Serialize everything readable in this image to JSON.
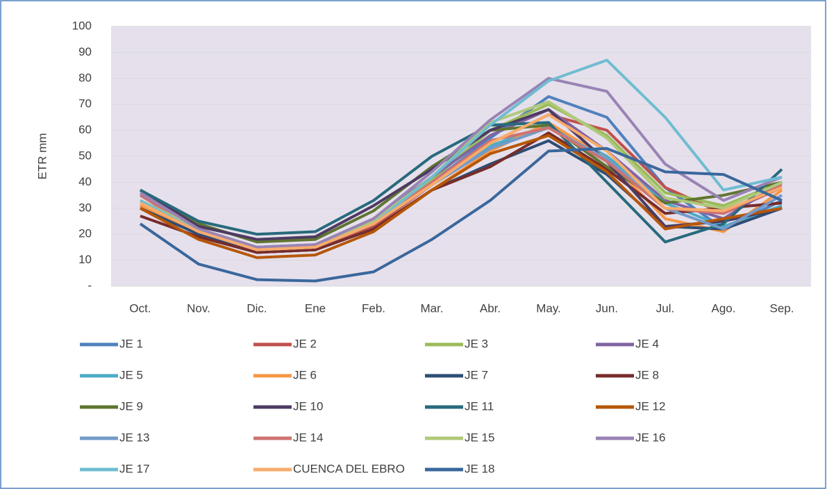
{
  "chart_data": {
    "type": "line",
    "y_label": "ETR mm",
    "categories": [
      "Oct.",
      "Nov.",
      "Dic.",
      "Ene",
      "Feb.",
      "Mar.",
      "Abr.",
      "May.",
      "Jun.",
      "Jul.",
      "Ago.",
      "Sep."
    ],
    "ylim": [
      0,
      100
    ],
    "yticks": [
      {
        "value": 0,
        "label": "-"
      },
      10,
      20,
      30,
      40,
      50,
      60,
      70,
      80,
      90,
      100
    ],
    "grid": true,
    "legend": "bottom",
    "series": [
      {
        "name": "JE 1",
        "color": "#4f81bd",
        "values": [
          32,
          21,
          14,
          15,
          24,
          40,
          57,
          73,
          65,
          38,
          22,
          33
        ]
      },
      {
        "name": "JE 2",
        "color": "#c0504d",
        "values": [
          31,
          20,
          13,
          14,
          23,
          39,
          55,
          66,
          60,
          38,
          28,
          38
        ]
      },
      {
        "name": "JE 3",
        "color": "#9bbb59",
        "values": [
          30,
          21,
          15,
          16,
          25,
          41,
          60,
          70,
          58,
          36,
          31,
          40
        ]
      },
      {
        "name": "JE 4",
        "color": "#8064a2",
        "values": [
          35,
          22,
          15,
          16,
          26,
          42,
          58,
          68,
          52,
          33,
          26,
          40
        ]
      },
      {
        "name": "JE 5",
        "color": "#4bacc6",
        "values": [
          33,
          21,
          14,
          15,
          24,
          39,
          54,
          62,
          50,
          32,
          23,
          31
        ]
      },
      {
        "name": "JE 6",
        "color": "#f79646",
        "values": [
          31,
          20,
          13,
          14,
          22,
          37,
          52,
          63,
          49,
          26,
          21,
          37
        ]
      },
      {
        "name": "JE 7",
        "color": "#2c4d75",
        "values": [
          30,
          20,
          13,
          14,
          22,
          37,
          47,
          56,
          43,
          23,
          22,
          30
        ]
      },
      {
        "name": "JE 8",
        "color": "#772c2a",
        "values": [
          27,
          19,
          13,
          14,
          22,
          37,
          46,
          59,
          45,
          28,
          30,
          32
        ]
      },
      {
        "name": "JE 9",
        "color": "#5f7530",
        "values": [
          37,
          24,
          17,
          18,
          29,
          46,
          60,
          62,
          46,
          32,
          35,
          40
        ]
      },
      {
        "name": "JE 10",
        "color": "#4d3b62",
        "values": [
          37,
          23,
          18,
          19,
          31,
          45,
          60,
          68,
          48,
          23,
          25,
          30
        ]
      },
      {
        "name": "JE 11",
        "color": "#276a7c",
        "values": [
          37,
          25,
          20,
          21,
          33,
          50,
          62,
          63,
          40,
          17,
          24,
          45
        ]
      },
      {
        "name": "JE 12",
        "color": "#b65708",
        "values": [
          30,
          18,
          11,
          12,
          21,
          37,
          51,
          58,
          44,
          22,
          26,
          30
        ]
      },
      {
        "name": "JE 13",
        "color": "#729aca",
        "values": [
          33,
          21,
          14,
          15,
          24,
          39,
          53,
          61,
          49,
          30,
          22,
          35
        ]
      },
      {
        "name": "JE 14",
        "color": "#cd7371",
        "values": [
          35,
          21,
          14,
          15,
          24,
          40,
          56,
          61,
          48,
          30,
          28,
          39
        ]
      },
      {
        "name": "JE 15",
        "color": "#afc97a",
        "values": [
          33,
          22,
          15,
          16,
          25,
          42,
          63,
          71,
          57,
          34,
          30,
          40
        ]
      },
      {
        "name": "JE 16",
        "color": "#9983b5",
        "values": [
          36,
          22,
          15,
          16,
          26,
          44,
          64,
          80,
          75,
          47,
          33,
          42
        ]
      },
      {
        "name": "JE 17",
        "color": "#6fbdd1",
        "values": [
          33,
          21,
          14,
          15,
          24,
          42,
          62,
          79,
          87,
          65,
          37,
          42
        ]
      },
      {
        "name": "CUENCA DEL EBRO",
        "color": "#f9ab6b",
        "values": [
          32,
          21,
          14,
          15,
          24,
          39,
          55,
          66,
          52,
          30,
          29,
          38
        ]
      },
      {
        "name": "JE 18",
        "color": "#3a679c",
        "values": [
          24,
          8.5,
          2.5,
          2,
          5.5,
          18,
          33,
          52,
          53,
          44,
          43,
          33
        ]
      }
    ]
  }
}
